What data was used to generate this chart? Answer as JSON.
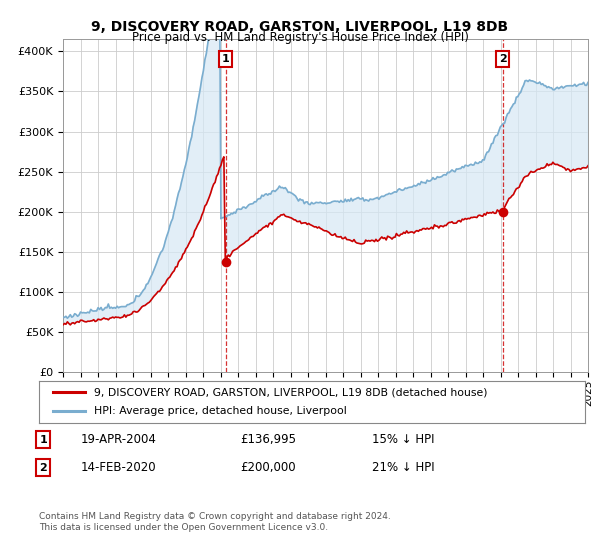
{
  "title": "9, DISCOVERY ROAD, GARSTON, LIVERPOOL, L19 8DB",
  "subtitle": "Price paid vs. HM Land Registry's House Price Index (HPI)",
  "ylabel_ticks": [
    "£0",
    "£50K",
    "£100K",
    "£150K",
    "£200K",
    "£250K",
    "£300K",
    "£350K",
    "£400K"
  ],
  "ytick_values": [
    0,
    50000,
    100000,
    150000,
    200000,
    250000,
    300000,
    350000,
    400000
  ],
  "ylim": [
    0,
    415000
  ],
  "xlim": [
    1995,
    2025
  ],
  "legend_line1": "9, DISCOVERY ROAD, GARSTON, LIVERPOOL, L19 8DB (detached house)",
  "legend_line2": "HPI: Average price, detached house, Liverpool",
  "annotation1_label": "1",
  "annotation1_date": "19-APR-2004",
  "annotation1_price": "£136,995",
  "annotation1_hpi": "15% ↓ HPI",
  "annotation2_label": "2",
  "annotation2_date": "14-FEB-2020",
  "annotation2_price": "£200,000",
  "annotation2_hpi": "21% ↓ HPI",
  "footnote": "Contains HM Land Registry data © Crown copyright and database right 2024.\nThis data is licensed under the Open Government Licence v3.0.",
  "red_color": "#cc0000",
  "blue_color": "#7aadcf",
  "fill_color": "#d6e8f5",
  "annotation_color": "#cc0000",
  "background_color": "#ffffff",
  "grid_color": "#cccccc",
  "sale1_x": 2004.3,
  "sale1_y": 136995,
  "sale2_x": 2020.12,
  "sale2_y": 200000
}
